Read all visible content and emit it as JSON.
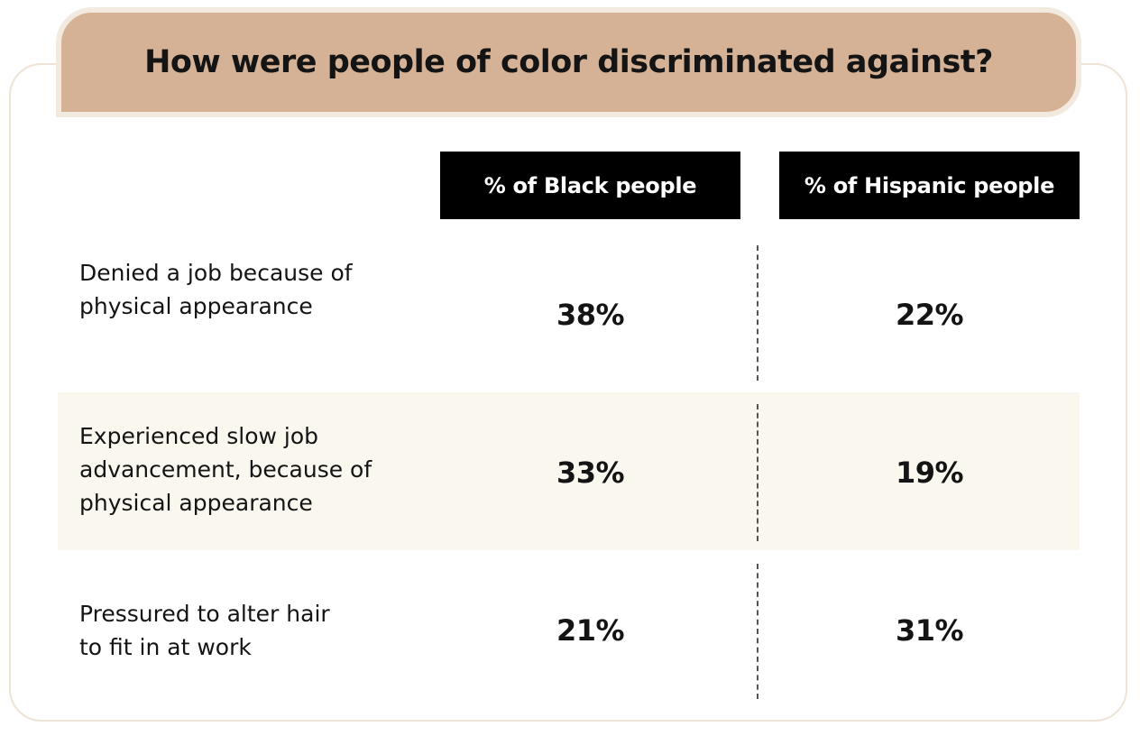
{
  "chart_data": {
    "type": "table",
    "title": "How were people of color discriminated against?",
    "columns": [
      "% of Black people",
      "% of Hispanic people"
    ],
    "rows": [
      {
        "label": "Denied a job because of\nphysical appearance",
        "values": [
          "38%",
          "22%"
        ]
      },
      {
        "label": "Experienced slow job\nadvancement, because of\nphysical appearance",
        "values": [
          "33%",
          "19%"
        ]
      },
      {
        "label": "Pressured to alter hair\nto fit in at work",
        "values": [
          "21%",
          "31%"
        ]
      }
    ]
  },
  "colors": {
    "title_band": "#d5b295",
    "header_fill": "#000000",
    "shaded_row": "#faf7ee",
    "card_border": "#eee4d6"
  }
}
